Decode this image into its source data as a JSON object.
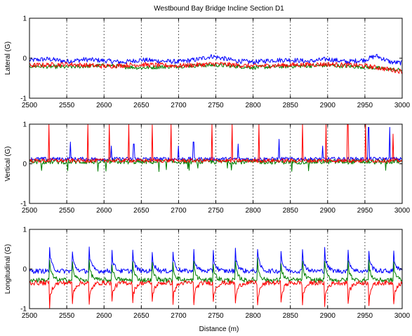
{
  "chart_data": {
    "title": "Westbound Bay Bridge Incline Section D1",
    "type": "line",
    "x_tick_labels": [
      "2500",
      "2550",
      "2600",
      "2650",
      "2700",
      "2750",
      "2800",
      "2850",
      "2900",
      "2950",
      "3000"
    ],
    "xlim": [
      2500,
      3000
    ],
    "x_ticks": [
      2500,
      2550,
      2600,
      2650,
      2700,
      2750,
      2800,
      2850,
      2900,
      2950,
      3000
    ],
    "xlabel": "Distance (m)",
    "grid": "vertical dotted",
    "colors": {
      "ch1": "#0000ff",
      "ch2": "#008000",
      "ch3": "#ff0000"
    },
    "panels": [
      {
        "ylabel": "Lateral (G)",
        "ylim": [
          -1,
          1
        ],
        "y_ticks": [
          -1,
          0,
          1
        ],
        "y_tick_labels": [
          "-1",
          "0",
          "1"
        ],
        "series": [
          {
            "color": "#0000ff",
            "baseline": -0.05,
            "points": [
              [
                2500,
                -0.05
              ],
              [
                2525,
                -0.02
              ],
              [
                2550,
                -0.08
              ],
              [
                2575,
                -0.03
              ],
              [
                2600,
                -0.06
              ],
              [
                2625,
                -0.1
              ],
              [
                2650,
                -0.04
              ],
              [
                2675,
                -0.07
              ],
              [
                2700,
                -0.09
              ],
              [
                2725,
                -0.03
              ],
              [
                2745,
                0.05
              ],
              [
                2775,
                -0.06
              ],
              [
                2800,
                -0.1
              ],
              [
                2825,
                -0.05
              ],
              [
                2850,
                -0.04
              ],
              [
                2875,
                -0.08
              ],
              [
                2900,
                -0.02
              ],
              [
                2925,
                -0.09
              ],
              [
                2950,
                -0.04
              ],
              [
                2965,
                0.06
              ],
              [
                2985,
                -0.1
              ],
              [
                3000,
                -0.12
              ]
            ]
          },
          {
            "color": "#008000",
            "baseline": -0.2,
            "points": [
              [
                2500,
                -0.2
              ],
              [
                2550,
                -0.22
              ],
              [
                2600,
                -0.18
              ],
              [
                2650,
                -0.24
              ],
              [
                2700,
                -0.2
              ],
              [
                2750,
                -0.17
              ],
              [
                2800,
                -0.23
              ],
              [
                2850,
                -0.2
              ],
              [
                2900,
                -0.18
              ],
              [
                2950,
                -0.22
              ],
              [
                3000,
                -0.3
              ]
            ]
          },
          {
            "color": "#ff0000",
            "baseline": -0.17,
            "points": [
              [
                2500,
                -0.18
              ],
              [
                2550,
                -0.15
              ],
              [
                2600,
                -0.2
              ],
              [
                2650,
                -0.16
              ],
              [
                2700,
                -0.19
              ],
              [
                2750,
                -0.14
              ],
              [
                2800,
                -0.2
              ],
              [
                2850,
                -0.17
              ],
              [
                2900,
                -0.15
              ],
              [
                2950,
                -0.19
              ],
              [
                3000,
                -0.33
              ]
            ]
          }
        ]
      },
      {
        "ylabel": "Vertical (G)",
        "ylim": [
          -1,
          1
        ],
        "y_ticks": [
          -1,
          0,
          1
        ],
        "y_tick_labels": [
          "-1",
          "0",
          "1"
        ],
        "series": [
          {
            "color": "#0000ff",
            "baseline": 0.12,
            "spikes": [
              [
                2555,
                0.55
              ],
              [
                2610,
                0.45
              ],
              [
                2640,
                0.5
              ],
              [
                2700,
                0.45
              ],
              [
                2720,
                0.55
              ],
              [
                2780,
                0.5
              ],
              [
                2835,
                0.62
              ],
              [
                2893,
                0.45
              ],
              [
                2955,
                0.92
              ],
              [
                2983,
                0.92
              ]
            ]
          },
          {
            "color": "#008000",
            "baseline": 0.05,
            "spikes": []
          },
          {
            "color": "#ff0000",
            "baseline": 0.08,
            "spikes": [
              [
                2526,
                1.0
              ],
              [
                2578,
                1.0
              ],
              [
                2607,
                1.0
              ],
              [
                2633,
                1.0
              ],
              [
                2665,
                0.98
              ],
              [
                2690,
                1.0
              ],
              [
                2745,
                1.0
              ],
              [
                2772,
                1.0
              ],
              [
                2808,
                1.0
              ],
              [
                2866,
                1.0
              ],
              [
                2898,
                1.0
              ],
              [
                2927,
                1.0
              ],
              [
                2951,
                1.0
              ],
              [
                2988,
                0.75
              ]
            ]
          }
        ]
      },
      {
        "ylabel": "Longitudinal (G)",
        "ylim": [
          -1,
          1
        ],
        "y_ticks": [
          -1,
          0,
          1
        ],
        "y_tick_labels": [
          "-1",
          "0",
          "1"
        ],
        "series": [
          {
            "color": "#0000ff",
            "baseline": -0.05,
            "events": [
              2527,
              2557,
              2580,
              2610,
              2638,
              2664,
              2692,
              2720,
              2746,
              2776,
              2806,
              2837,
              2866,
              2896,
              2927,
              2955,
              2988
            ],
            "peak": 0.55
          },
          {
            "color": "#008000",
            "baseline": -0.28,
            "events": [
              2527,
              2557,
              2580,
              2610,
              2638,
              2664,
              2692,
              2720,
              2746,
              2776,
              2806,
              2837,
              2866,
              2896,
              2927,
              2955,
              2988
            ],
            "peak": 0.25
          },
          {
            "color": "#ff0000",
            "baseline": -0.35,
            "events": [
              2527,
              2557,
              2580,
              2610,
              2638,
              2664,
              2692,
              2720,
              2746,
              2776,
              2806,
              2837,
              2866,
              2896,
              2927,
              2955,
              2988
            ],
            "peak": -0.95
          }
        ]
      }
    ]
  }
}
